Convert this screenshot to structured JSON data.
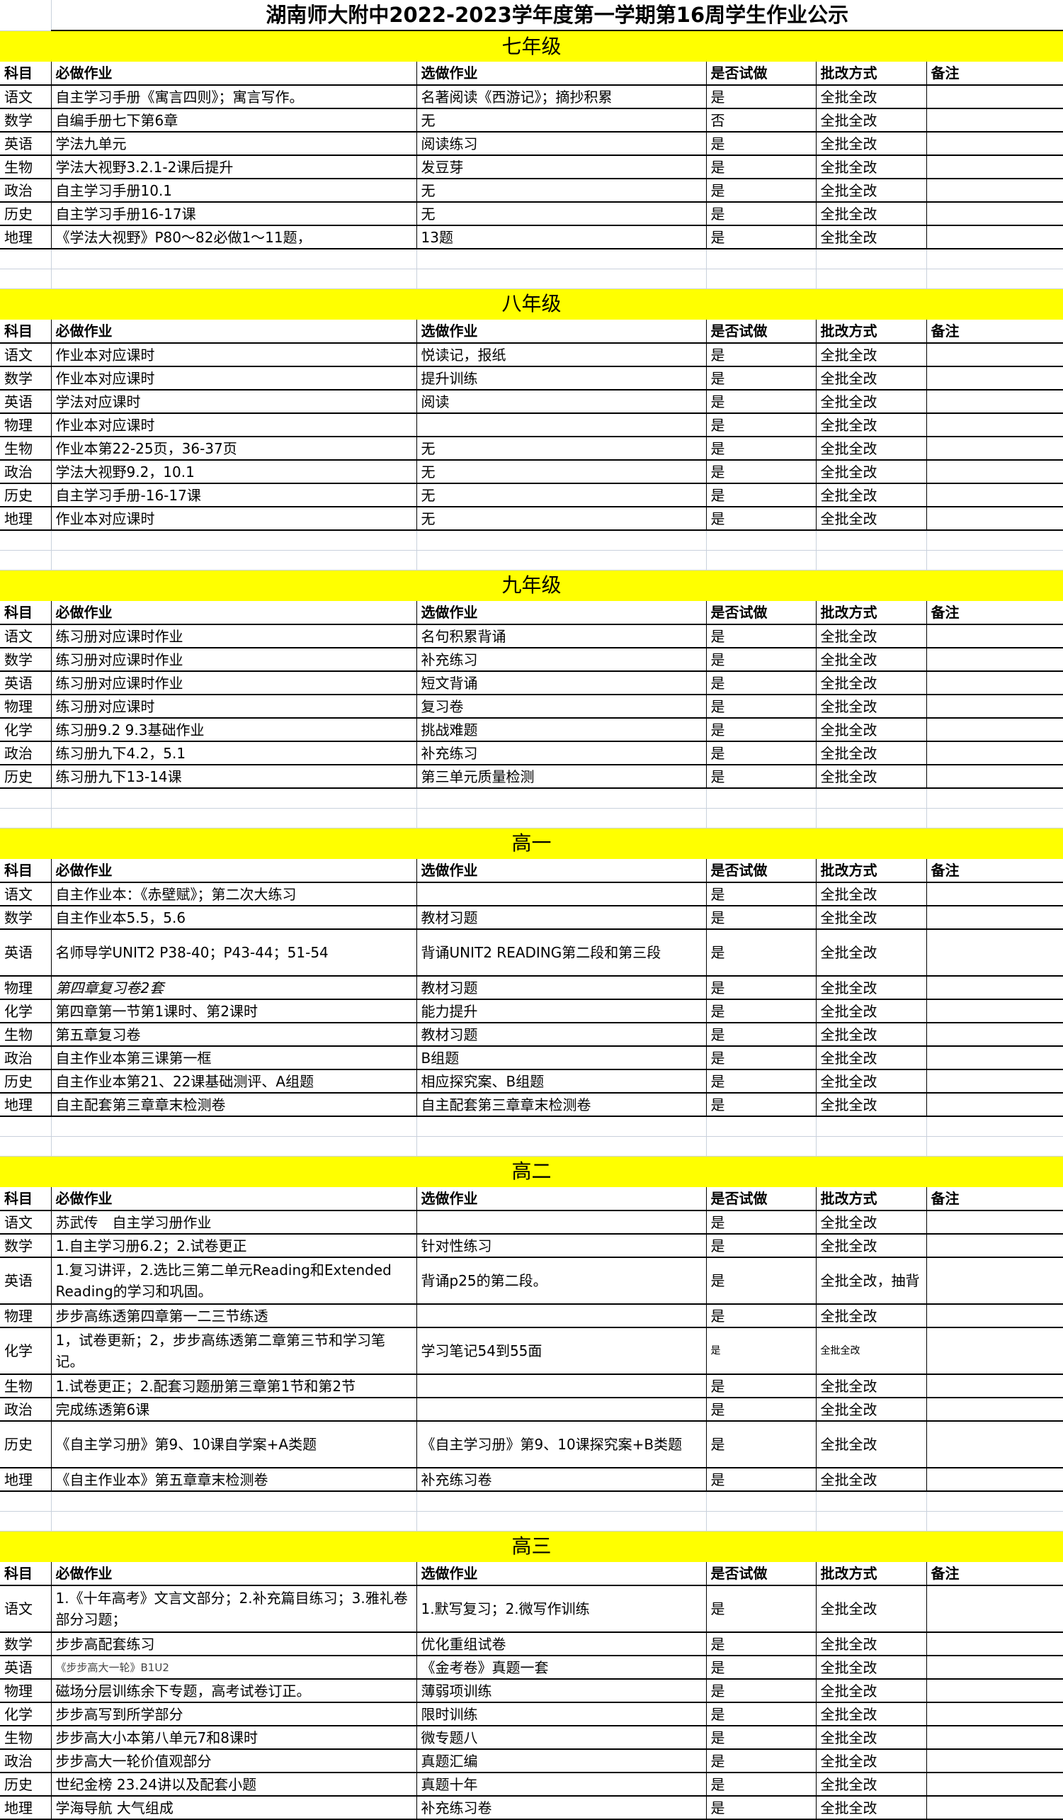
{
  "title": "湖南师大附中2022-2023学年度第一学期第16周学生作业公示",
  "colors": {
    "band": "#ffff00",
    "grid": "#c9d1dc",
    "border": "#000000"
  },
  "headers": [
    "科目",
    "必做作业",
    "选做作业",
    "是否试做",
    "批改方式",
    "备注"
  ],
  "sections": [
    {
      "grade": "七年级",
      "rows": [
        [
          "语文",
          "自主学习手册《寓言四则》；寓言写作。",
          "名著阅读《西游记》；摘抄积累",
          "是",
          "全批全改",
          ""
        ],
        [
          "数学",
          "自编手册七下第6章",
          "无",
          "否",
          "全批全改",
          ""
        ],
        [
          "英语",
          "学法九单元",
          "阅读练习",
          "是",
          "全批全改",
          ""
        ],
        [
          "生物",
          "学法大视野3.2.1-2课后提升",
          "发豆芽",
          "是",
          "全批全改",
          ""
        ],
        [
          "政治",
          "自主学习手册10.1",
          "无",
          "是",
          "全批全改",
          ""
        ],
        [
          "历史",
          "自主学习手册16-17课",
          "无",
          "是",
          "全批全改",
          ""
        ],
        [
          "地理",
          "《学法大视野》P80～82必做1～11题，",
          "13题",
          "是",
          "全批全改",
          ""
        ]
      ]
    },
    {
      "grade": "八年级",
      "rows": [
        [
          "语文",
          "作业本对应课时",
          "悦读记，报纸",
          "是",
          "全批全改",
          ""
        ],
        [
          "数学",
          "作业本对应课时",
          "提升训练",
          "是",
          "全批全改",
          ""
        ],
        [
          "英语",
          "学法对应课时",
          "阅读",
          "是",
          "全批全改",
          ""
        ],
        [
          "物理",
          "作业本对应课时",
          "",
          "是",
          "全批全改",
          ""
        ],
        [
          "生物",
          "作业本第22-25页，36-37页",
          "无",
          "是",
          "全批全改",
          ""
        ],
        [
          "政治",
          "学法大视野9.2，10.1",
          "无",
          "是",
          "全批全改",
          ""
        ],
        [
          "历史",
          "自主学习手册-16-17课",
          "无",
          "是",
          "全批全改",
          ""
        ],
        [
          "地理",
          "作业本对应课时",
          "无",
          "是",
          "全批全改",
          ""
        ]
      ]
    },
    {
      "grade": "九年级",
      "rows": [
        [
          "语文",
          "练习册对应课时作业",
          "名句积累背诵",
          "是",
          "全批全改",
          ""
        ],
        [
          "数学",
          "练习册对应课时作业",
          "补充练习",
          "是",
          "全批全改",
          ""
        ],
        [
          "英语",
          "练习册对应课时作业",
          "短文背诵",
          "是",
          "全批全改",
          ""
        ],
        [
          "物理",
          "练习册对应课时",
          "复习卷",
          "是",
          "全批全改",
          ""
        ],
        [
          "化学",
          "练习册9.2 9.3基础作业",
          "挑战难题",
          "是",
          "全批全改",
          ""
        ],
        [
          "政治",
          "练习册九下4.2，5.1",
          "补充练习",
          "是",
          "全批全改",
          ""
        ],
        [
          "历史",
          "练习册九下13-14课",
          "第三单元质量检测",
          "是",
          "全批全改",
          ""
        ]
      ]
    },
    {
      "grade": "高一",
      "rows": [
        [
          "语文",
          "自主作业本：《赤壁赋》；第二次大练习",
          "",
          "是",
          "全批全改",
          ""
        ],
        [
          "数学",
          "自主作业本5.5，5.6",
          "教材习题",
          "是",
          "全批全改",
          ""
        ],
        [
          "英语",
          "名师导学UNIT2 P38-40；P43-44；51-54",
          "背诵UNIT2 READING第二段和第三段",
          "是",
          "全批全改",
          ""
        ],
        [
          "物理",
          "第四章复习卷2套",
          "教材习题",
          "是",
          "全批全改",
          ""
        ],
        [
          "化学",
          "第四章第一节第1课时、第2课时",
          "能力提升",
          "是",
          "全批全改",
          ""
        ],
        [
          "生物",
          "第五章复习卷",
          "教材习题",
          "是",
          "全批全改",
          ""
        ],
        [
          "政治",
          "自主作业本第三课第一框",
          "B组题",
          "是",
          "全批全改",
          ""
        ],
        [
          "历史",
          "自主作业本第21、22课基础测评、A组题",
          "相应探究案、B组题",
          "是",
          "全批全改",
          ""
        ],
        [
          "地理",
          "自主配套第三章章末检测卷",
          "自主配套第三章章末检测卷",
          "是",
          "全批全改",
          ""
        ]
      ]
    },
    {
      "grade": "高二",
      "rows": [
        [
          "语文",
          "苏武传　自主学习册作业",
          "",
          "是",
          "全批全改",
          ""
        ],
        [
          "数学",
          "1.自主学习册6.2；2.试卷更正",
          "针对性练习",
          "是",
          "全批全改",
          ""
        ],
        [
          "英语",
          "1.复习讲评，2.选比三第二单元Reading和Extended Reading的学习和巩固。",
          "背诵p25的第二段。",
          "是",
          "全批全改，抽背",
          ""
        ],
        [
          "物理",
          "步步高练透第四章第一二三节练透",
          "",
          "是",
          "全批全改",
          ""
        ],
        [
          "化学",
          "1，试卷更新；2，步步高练透第二章第三节和学习笔记。",
          "学习笔记54到55面",
          "是",
          "全批全改",
          ""
        ],
        [
          "生物",
          "1.试卷更正；2.配套习题册第三章第1节和第2节",
          "",
          "是",
          "全批全改",
          ""
        ],
        [
          "政治",
          "完成练透第6课",
          "",
          "是",
          "全批全改",
          ""
        ],
        [
          "历史",
          "《自主学习册》第9、10课自学案+A类题",
          "《自主学习册》第9、10课探究案+B类题",
          "是",
          "全批全改",
          ""
        ],
        [
          "地理",
          "《自主作业本》第五章章末检测卷",
          "补充练习卷",
          "是",
          "全批全改",
          ""
        ]
      ]
    },
    {
      "grade": "高三",
      "rows": [
        [
          "语文",
          "1.《十年高考》文言文部分；2.补充篇目练习；3.雅礼卷部分习题；",
          "1.默写复习；2.微写作训练",
          "是",
          "全批全改",
          ""
        ],
        [
          "数学",
          "步步高配套练习",
          "优化重组试卷",
          "是",
          "全批全改",
          ""
        ],
        [
          "英语",
          "《步步高大一轮》B1U2",
          "《金考卷》真题一套",
          "是",
          "全批全改",
          ""
        ],
        [
          "物理",
          "磁场分层训练余下专题，高考试卷订正。",
          "薄弱项训练",
          "是",
          "全批全改",
          ""
        ],
        [
          "化学",
          "步步高写到所学部分",
          "限时训练",
          "是",
          "全批全改",
          ""
        ],
        [
          "生物",
          "步步高大小本第八单元7和8课时",
          "微专题八",
          "是",
          "全批全改",
          ""
        ],
        [
          "政治",
          "步步高大一轮价值观部分",
          "真题汇编",
          "是",
          "全批全改",
          ""
        ],
        [
          "历史",
          "世纪金榜 23.24讲以及配套小题",
          "真题十年",
          "是",
          "全批全改",
          ""
        ],
        [
          "地理",
          "学海导航 大气组成",
          "补充练习卷",
          "是",
          "全批全改",
          ""
        ]
      ]
    }
  ]
}
